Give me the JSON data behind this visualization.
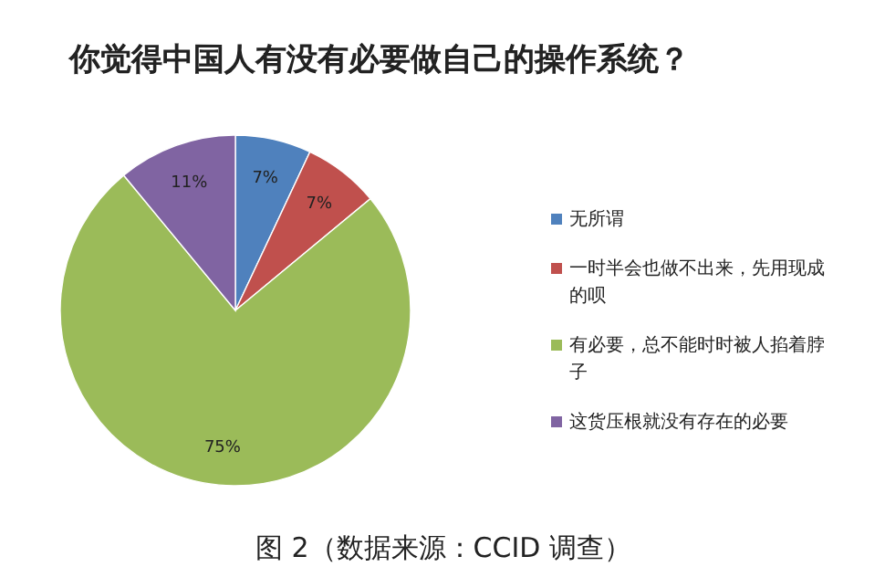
{
  "chart_data": {
    "type": "pie",
    "title": "你觉得中国人有没有必要做自己的操作系统？",
    "categories": [
      "无所谓",
      "一时半会也做不出来，先用现成的呗",
      "有必要，总不能时时被人掐着脖子",
      "这货压根就没有存在的必要"
    ],
    "values": [
      7,
      7,
      75,
      11
    ],
    "colors": [
      "#4f81bd",
      "#c0504d",
      "#9bbb59",
      "#8064a2"
    ],
    "value_labels": [
      "7%",
      "7%",
      "75%",
      "11%"
    ],
    "legend": "right",
    "annotations": [
      "图 2（数据来源：CCID 调查）"
    ]
  }
}
